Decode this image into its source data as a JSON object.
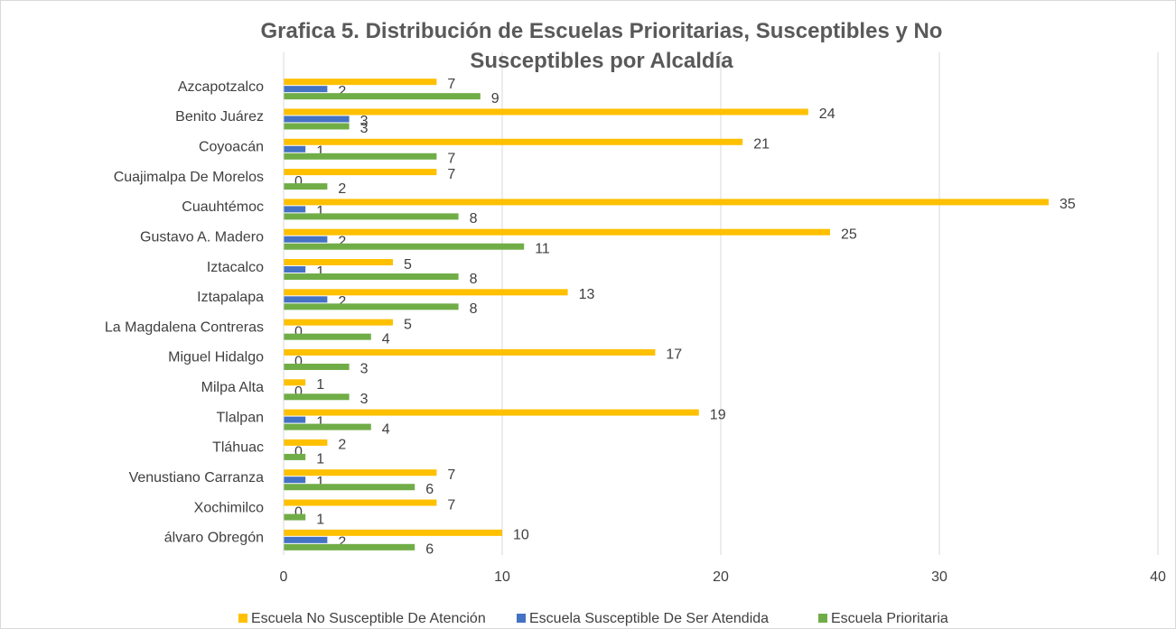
{
  "chart_data": {
    "type": "bar",
    "orientation": "horizontal",
    "title": "Grafica 5. Distribución de Escuelas Prioritarias, Susceptibles y No Susceptibles por Alcaldía",
    "categories": [
      "Azcapotzalco",
      "Benito Juárez",
      "Coyoacán",
      "Cuajimalpa De Morelos",
      "Cuauhtémoc",
      "Gustavo A. Madero",
      "Iztacalco",
      "Iztapalapa",
      "La Magdalena Contreras",
      "Miguel Hidalgo",
      "Milpa Alta",
      "Tlalpan",
      "Tláhuac",
      "Venustiano Carranza",
      "Xochimilco",
      "álvaro Obregón"
    ],
    "series": [
      {
        "name": "Escuela No Susceptible De Atención",
        "color": "#FFC000",
        "values": [
          7,
          24,
          21,
          7,
          35,
          25,
          5,
          13,
          5,
          17,
          1,
          19,
          2,
          7,
          7,
          10
        ]
      },
      {
        "name": "Escuela Susceptible De Ser Atendida",
        "color": "#4472C4",
        "values": [
          2,
          3,
          1,
          0,
          1,
          2,
          1,
          2,
          0,
          0,
          0,
          1,
          0,
          1,
          0,
          2
        ]
      },
      {
        "name": "Escuela Prioritaria",
        "color": "#70AD47",
        "values": [
          9,
          3,
          7,
          2,
          8,
          11,
          8,
          8,
          4,
          3,
          3,
          4,
          1,
          6,
          1,
          6
        ]
      }
    ],
    "xlim": [
      0,
      40
    ],
    "xticks": [
      0,
      10,
      20,
      30,
      40
    ],
    "grid": true,
    "legend": "bottom"
  }
}
